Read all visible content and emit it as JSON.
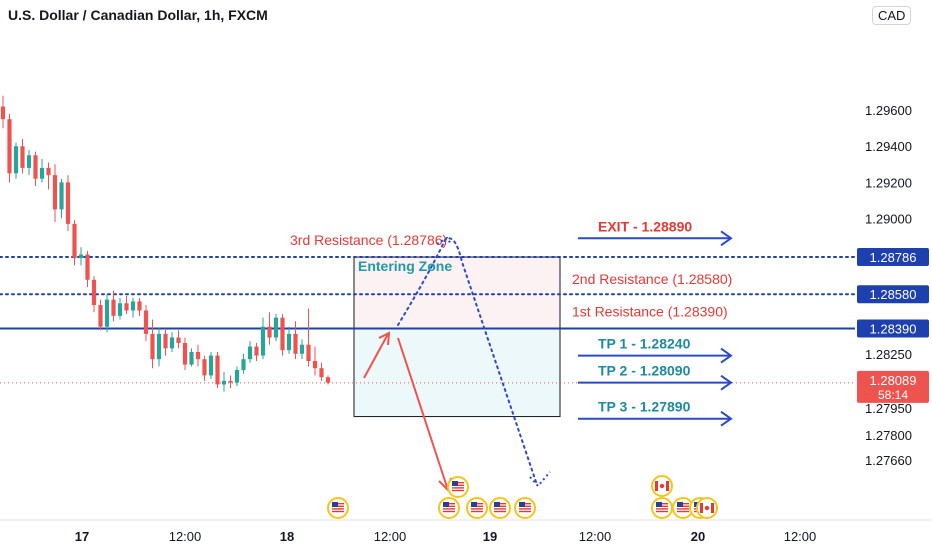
{
  "header": {
    "title": "U.S. Dollar / Canadian Dollar, 1h, FXCM",
    "currency": "CAD"
  },
  "chart_data": {
    "type": "candlestick",
    "symbol": "USD/CAD",
    "interval": "1h",
    "source": "FXCM",
    "ylim": [
      1.275,
      1.2985
    ],
    "y_ticks": [
      "1.29600",
      "1.29400",
      "1.29200",
      "1.29000",
      "1.28250",
      "1.27950",
      "1.27800",
      "1.27660"
    ],
    "y_tick_values": [
      1.296,
      1.294,
      1.292,
      1.29,
      1.2825,
      1.2795,
      1.278,
      1.2766
    ],
    "x_ticks": [
      "17",
      "12:00",
      "18",
      "12:00",
      "19",
      "12:00",
      "20",
      "12:00"
    ],
    "x_ticks_bold": [
      true,
      false,
      true,
      false,
      true,
      false,
      true,
      false
    ],
    "price_levels": [
      {
        "label": "1.28786",
        "value": 1.28786,
        "style": "dotted",
        "color": "#1e40af"
      },
      {
        "label": "1.28580",
        "value": 1.2858,
        "style": "dotted",
        "color": "#1e40af"
      },
      {
        "label": "1.28390",
        "value": 1.2839,
        "style": "solid",
        "color": "#1e40af"
      }
    ],
    "current_price": {
      "label": "1.28089",
      "countdown": "58:14",
      "value": 1.28089,
      "color": "#ef5350"
    },
    "candles": [
      {
        "o": 1.2962,
        "h": 1.2968,
        "l": 1.295,
        "c": 1.2955
      },
      {
        "o": 1.2955,
        "h": 1.2958,
        "l": 1.292,
        "c": 1.2925
      },
      {
        "o": 1.2925,
        "h": 1.2942,
        "l": 1.2922,
        "c": 1.294
      },
      {
        "o": 1.294,
        "h": 1.2944,
        "l": 1.2925,
        "c": 1.2928
      },
      {
        "o": 1.2928,
        "h": 1.2938,
        "l": 1.2924,
        "c": 1.2935
      },
      {
        "o": 1.2935,
        "h": 1.2937,
        "l": 1.2918,
        "c": 1.2922
      },
      {
        "o": 1.2922,
        "h": 1.2933,
        "l": 1.292,
        "c": 1.2928
      },
      {
        "o": 1.2928,
        "h": 1.2931,
        "l": 1.2916,
        "c": 1.2924
      },
      {
        "o": 1.2924,
        "h": 1.293,
        "l": 1.2898,
        "c": 1.2905
      },
      {
        "o": 1.2905,
        "h": 1.2922,
        "l": 1.29,
        "c": 1.292
      },
      {
        "o": 1.292,
        "h": 1.2924,
        "l": 1.2893,
        "c": 1.2897
      },
      {
        "o": 1.2897,
        "h": 1.2899,
        "l": 1.2874,
        "c": 1.2878
      },
      {
        "o": 1.2878,
        "h": 1.2884,
        "l": 1.2874,
        "c": 1.288
      },
      {
        "o": 1.288,
        "h": 1.2882,
        "l": 1.2862,
        "c": 1.2866
      },
      {
        "o": 1.2866,
        "h": 1.2868,
        "l": 1.2848,
        "c": 1.2852
      },
      {
        "o": 1.2852,
        "h": 1.2855,
        "l": 1.2838,
        "c": 1.284
      },
      {
        "o": 1.284,
        "h": 1.2858,
        "l": 1.2837,
        "c": 1.2855
      },
      {
        "o": 1.2855,
        "h": 1.286,
        "l": 1.2843,
        "c": 1.2846
      },
      {
        "o": 1.2846,
        "h": 1.2856,
        "l": 1.2844,
        "c": 1.2853
      },
      {
        "o": 1.2853,
        "h": 1.2857,
        "l": 1.2847,
        "c": 1.2849
      },
      {
        "o": 1.2849,
        "h": 1.2856,
        "l": 1.2845,
        "c": 1.2854
      },
      {
        "o": 1.2854,
        "h": 1.2856,
        "l": 1.2846,
        "c": 1.2849
      },
      {
        "o": 1.2849,
        "h": 1.2852,
        "l": 1.2832,
        "c": 1.2836
      },
      {
        "o": 1.2836,
        "h": 1.2844,
        "l": 1.2817,
        "c": 1.2822
      },
      {
        "o": 1.2822,
        "h": 1.2839,
        "l": 1.2818,
        "c": 1.2836
      },
      {
        "o": 1.2836,
        "h": 1.2839,
        "l": 1.2824,
        "c": 1.2828
      },
      {
        "o": 1.2828,
        "h": 1.2837,
        "l": 1.2826,
        "c": 1.2834
      },
      {
        "o": 1.2834,
        "h": 1.2838,
        "l": 1.2828,
        "c": 1.2831
      },
      {
        "o": 1.2831,
        "h": 1.2834,
        "l": 1.2816,
        "c": 1.2819
      },
      {
        "o": 1.2819,
        "h": 1.2828,
        "l": 1.2818,
        "c": 1.2826
      },
      {
        "o": 1.2826,
        "h": 1.283,
        "l": 1.2818,
        "c": 1.2822
      },
      {
        "o": 1.2822,
        "h": 1.2824,
        "l": 1.281,
        "c": 1.2813
      },
      {
        "o": 1.2813,
        "h": 1.2826,
        "l": 1.2811,
        "c": 1.2824
      },
      {
        "o": 1.2824,
        "h": 1.2826,
        "l": 1.2806,
        "c": 1.2808
      },
      {
        "o": 1.2808,
        "h": 1.2815,
        "l": 1.2804,
        "c": 1.281
      },
      {
        "o": 1.281,
        "h": 1.2813,
        "l": 1.2806,
        "c": 1.2809
      },
      {
        "o": 1.2809,
        "h": 1.2818,
        "l": 1.2807,
        "c": 1.2816
      },
      {
        "o": 1.2816,
        "h": 1.2825,
        "l": 1.2814,
        "c": 1.2822
      },
      {
        "o": 1.2822,
        "h": 1.2832,
        "l": 1.282,
        "c": 1.2829
      },
      {
        "o": 1.2829,
        "h": 1.2831,
        "l": 1.2821,
        "c": 1.2824
      },
      {
        "o": 1.2824,
        "h": 1.2845,
        "l": 1.2822,
        "c": 1.284
      },
      {
        "o": 1.284,
        "h": 1.2848,
        "l": 1.283,
        "c": 1.2834
      },
      {
        "o": 1.2834,
        "h": 1.2847,
        "l": 1.2832,
        "c": 1.2845
      },
      {
        "o": 1.2845,
        "h": 1.2847,
        "l": 1.2824,
        "c": 1.2827
      },
      {
        "o": 1.2827,
        "h": 1.284,
        "l": 1.2825,
        "c": 1.2836
      },
      {
        "o": 1.2836,
        "h": 1.2843,
        "l": 1.2822,
        "c": 1.2825
      },
      {
        "o": 1.2825,
        "h": 1.2833,
        "l": 1.2822,
        "c": 1.283
      },
      {
        "o": 1.283,
        "h": 1.285,
        "l": 1.2818,
        "c": 1.2821
      },
      {
        "o": 1.2821,
        "h": 1.2829,
        "l": 1.2813,
        "c": 1.2817
      },
      {
        "o": 1.2817,
        "h": 1.282,
        "l": 1.281,
        "c": 1.2812
      },
      {
        "o": 1.2812,
        "h": 1.2813,
        "l": 1.2808,
        "c": 1.2809
      }
    ],
    "annotations": {
      "resistance_labels": [
        {
          "text": "3rd Resistance (1.28786)",
          "value": 1.28786
        },
        {
          "text": "2nd Resistance (1.28580)",
          "value": 1.2858
        },
        {
          "text": "1st Resistance (1.28390)",
          "value": 1.2839
        }
      ],
      "entering_zone": "Entering Zone",
      "targets": [
        {
          "text": "EXIT - 1.28890",
          "value": 1.2889,
          "color": "#e53935"
        },
        {
          "text": "TP 1 - 1.28240",
          "value": 1.2824,
          "color": "#1e8aa0"
        },
        {
          "text": "TP 2 - 1.28090",
          "value": 1.2809,
          "color": "#1e8aa0"
        },
        {
          "text": "TP 3 - 1.27890",
          "value": 1.2789,
          "color": "#1e8aa0"
        }
      ]
    },
    "colors": {
      "up": "#26a69a",
      "down": "#ef5350",
      "level_line": "#1e40af",
      "arrow_blue": "#2a4ac8",
      "resistance_text": "#e53935",
      "zone_text": "#1e9aa8",
      "zone_top_fill": "#fdf2f3",
      "zone_bottom_fill": "#ecf8fa"
    },
    "events": [
      {
        "flag": "us"
      },
      {
        "flag": "us"
      },
      {
        "flag": "us"
      },
      {
        "flag": "us"
      },
      {
        "flag": "us"
      },
      {
        "flag": "us"
      },
      {
        "flag": "us"
      },
      {
        "flag": "ca"
      },
      {
        "flag": "us"
      },
      {
        "flag": "us"
      },
      {
        "flag": "ca"
      }
    ]
  }
}
